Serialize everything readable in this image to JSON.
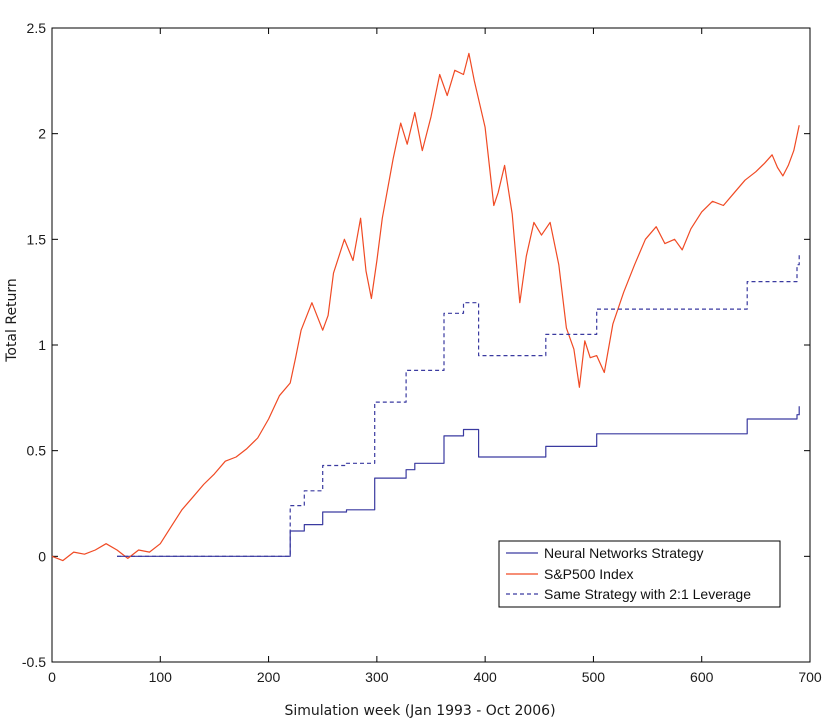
{
  "chart_data": {
    "type": "line",
    "xlabel": "Simulation week (Jan 1993 - Oct 2006)",
    "ylabel": "Total Return",
    "xlim": [
      0,
      700
    ],
    "ylim": [
      -0.5,
      2.5
    ],
    "x_ticks": [
      "0",
      "100",
      "200",
      "300",
      "400",
      "500",
      "600",
      "700"
    ],
    "y_ticks": [
      "-0.5",
      "0",
      "0.5",
      "1",
      "1.5",
      "2",
      "2.5"
    ],
    "grid": false,
    "legend_position": "lower-right",
    "series": [
      {
        "name": "Neural Networks Strategy",
        "color": "#3a3aa0",
        "style": "solid",
        "step": true,
        "points": [
          [
            60,
            0
          ],
          [
            220,
            0
          ],
          [
            220,
            0.12
          ],
          [
            233,
            0.12
          ],
          [
            233,
            0.15
          ],
          [
            250,
            0.15
          ],
          [
            250,
            0.21
          ],
          [
            272,
            0.21
          ],
          [
            272,
            0.22
          ],
          [
            298,
            0.22
          ],
          [
            298,
            0.37
          ],
          [
            327,
            0.37
          ],
          [
            327,
            0.41
          ],
          [
            335,
            0.41
          ],
          [
            335,
            0.44
          ],
          [
            362,
            0.44
          ],
          [
            362,
            0.57
          ],
          [
            380,
            0.57
          ],
          [
            380,
            0.6
          ],
          [
            394,
            0.6
          ],
          [
            394,
            0.47
          ],
          [
            448,
            0.47
          ],
          [
            448,
            0.47
          ],
          [
            456,
            0.47
          ],
          [
            456,
            0.52
          ],
          [
            503,
            0.52
          ],
          [
            503,
            0.58
          ],
          [
            642,
            0.58
          ],
          [
            642,
            0.65
          ],
          [
            688,
            0.65
          ],
          [
            688,
            0.67
          ],
          [
            690,
            0.67
          ],
          [
            690,
            0.71
          ]
        ]
      },
      {
        "name": "S&P500 Index",
        "color": "#f04a24",
        "style": "solid",
        "step": false,
        "points": [
          [
            0,
            0
          ],
          [
            10,
            -0.02
          ],
          [
            20,
            0.02
          ],
          [
            30,
            0.01
          ],
          [
            40,
            0.03
          ],
          [
            50,
            0.06
          ],
          [
            60,
            0.03
          ],
          [
            70,
            -0.01
          ],
          [
            80,
            0.03
          ],
          [
            90,
            0.02
          ],
          [
            100,
            0.06
          ],
          [
            110,
            0.14
          ],
          [
            120,
            0.22
          ],
          [
            130,
            0.28
          ],
          [
            140,
            0.34
          ],
          [
            150,
            0.39
          ],
          [
            160,
            0.45
          ],
          [
            170,
            0.47
          ],
          [
            180,
            0.51
          ],
          [
            190,
            0.56
          ],
          [
            200,
            0.65
          ],
          [
            210,
            0.76
          ],
          [
            220,
            0.82
          ],
          [
            225,
            0.94
          ],
          [
            230,
            1.07
          ],
          [
            240,
            1.2
          ],
          [
            250,
            1.07
          ],
          [
            255,
            1.14
          ],
          [
            260,
            1.34
          ],
          [
            270,
            1.5
          ],
          [
            278,
            1.4
          ],
          [
            285,
            1.6
          ],
          [
            290,
            1.35
          ],
          [
            295,
            1.22
          ],
          [
            300,
            1.4
          ],
          [
            305,
            1.6
          ],
          [
            315,
            1.88
          ],
          [
            322,
            2.05
          ],
          [
            328,
            1.95
          ],
          [
            335,
            2.1
          ],
          [
            342,
            1.92
          ],
          [
            350,
            2.08
          ],
          [
            358,
            2.28
          ],
          [
            365,
            2.18
          ],
          [
            372,
            2.3
          ],
          [
            380,
            2.28
          ],
          [
            385,
            2.38
          ],
          [
            390,
            2.25
          ],
          [
            400,
            2.03
          ],
          [
            408,
            1.66
          ],
          [
            412,
            1.72
          ],
          [
            418,
            1.85
          ],
          [
            425,
            1.62
          ],
          [
            432,
            1.2
          ],
          [
            438,
            1.42
          ],
          [
            445,
            1.58
          ],
          [
            452,
            1.52
          ],
          [
            460,
            1.58
          ],
          [
            468,
            1.38
          ],
          [
            475,
            1.08
          ],
          [
            482,
            0.98
          ],
          [
            487,
            0.8
          ],
          [
            492,
            1.02
          ],
          [
            497,
            0.94
          ],
          [
            503,
            0.95
          ],
          [
            510,
            0.87
          ],
          [
            518,
            1.1
          ],
          [
            528,
            1.25
          ],
          [
            538,
            1.38
          ],
          [
            548,
            1.5
          ],
          [
            558,
            1.56
          ],
          [
            566,
            1.48
          ],
          [
            575,
            1.5
          ],
          [
            582,
            1.45
          ],
          [
            590,
            1.55
          ],
          [
            600,
            1.63
          ],
          [
            610,
            1.68
          ],
          [
            620,
            1.66
          ],
          [
            630,
            1.72
          ],
          [
            640,
            1.78
          ],
          [
            650,
            1.82
          ],
          [
            658,
            1.86
          ],
          [
            665,
            1.9
          ],
          [
            670,
            1.84
          ],
          [
            675,
            1.8
          ],
          [
            680,
            1.85
          ],
          [
            685,
            1.92
          ],
          [
            690,
            2.04
          ]
        ]
      },
      {
        "name": "Same Strategy with 2:1 Leverage",
        "color": "#3a3aa0",
        "style": "dashed",
        "step": true,
        "points": [
          [
            60,
            0
          ],
          [
            220,
            0
          ],
          [
            220,
            0.24
          ],
          [
            233,
            0.24
          ],
          [
            233,
            0.31
          ],
          [
            250,
            0.31
          ],
          [
            250,
            0.43
          ],
          [
            272,
            0.43
          ],
          [
            272,
            0.44
          ],
          [
            298,
            0.44
          ],
          [
            298,
            0.73
          ],
          [
            327,
            0.73
          ],
          [
            327,
            0.88
          ],
          [
            335,
            0.88
          ],
          [
            335,
            0.88
          ],
          [
            362,
            0.88
          ],
          [
            362,
            1.15
          ],
          [
            380,
            1.15
          ],
          [
            380,
            1.2
          ],
          [
            394,
            1.2
          ],
          [
            394,
            0.95
          ],
          [
            448,
            0.95
          ],
          [
            456,
            0.95
          ],
          [
            456,
            1.05
          ],
          [
            503,
            1.05
          ],
          [
            503,
            1.17
          ],
          [
            642,
            1.17
          ],
          [
            642,
            1.3
          ],
          [
            688,
            1.3
          ],
          [
            688,
            1.38
          ],
          [
            690,
            1.38
          ],
          [
            690,
            1.43
          ]
        ]
      }
    ]
  }
}
